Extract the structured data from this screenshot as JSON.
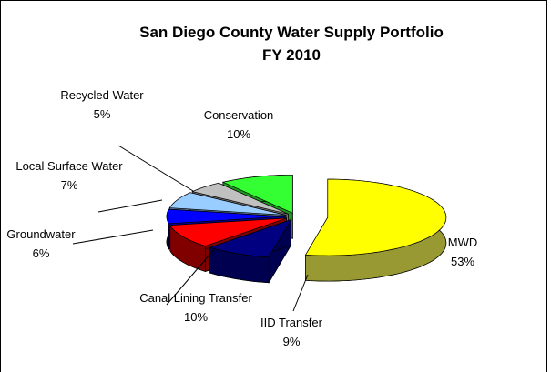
{
  "chart_data": {
    "type": "pie3d",
    "title": "San Diego County Water Supply Portfolio",
    "subtitle": "FY 2010",
    "categories": [
      "MWD",
      "IID Transfer",
      "Canal Lining Transfer",
      "Groundwater",
      "Local Surface Water",
      "Recycled Water",
      "Conservation"
    ],
    "values": [
      53,
      9,
      10,
      6,
      7,
      5,
      10
    ],
    "value_labels": [
      "53%",
      "9%",
      "10%",
      "6%",
      "7%",
      "5%",
      "10%"
    ],
    "colors": [
      "#ffff00",
      "#000080",
      "#ff0000",
      "#0000ff",
      "#99ccff",
      "#c0c0c0",
      "#33ff33"
    ],
    "side_colors": [
      "#999933",
      "#000050",
      "#800000",
      "#000099",
      "#5c7a99",
      "#737373",
      "#1f991f"
    ]
  }
}
